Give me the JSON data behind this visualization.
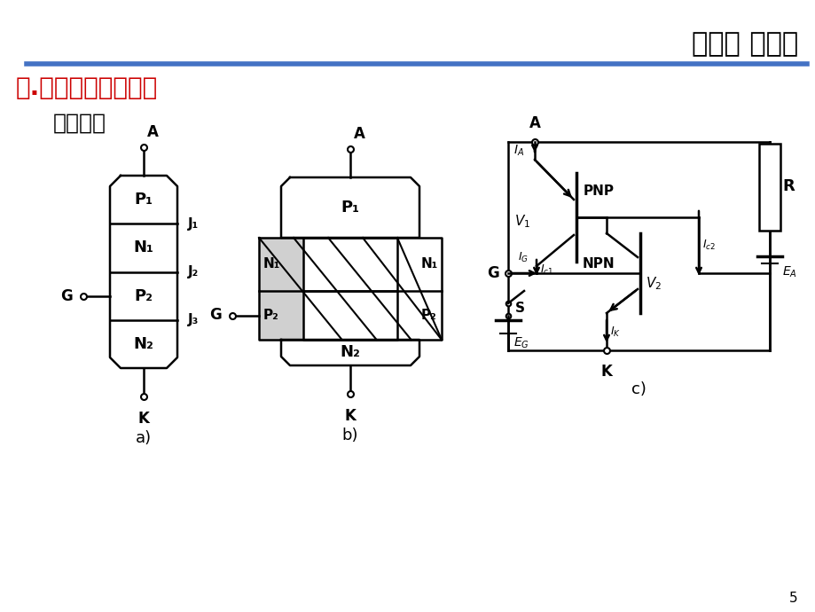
{
  "title": "第一章 晶闸管",
  "subtitle": "二.晶闸管的工作原理",
  "subtitle2": "等效电路",
  "bg_color": "#ffffff",
  "title_color": "#000000",
  "subtitle_color": "#cc0000",
  "header_line_color": "#4472C4",
  "page_num": "5"
}
